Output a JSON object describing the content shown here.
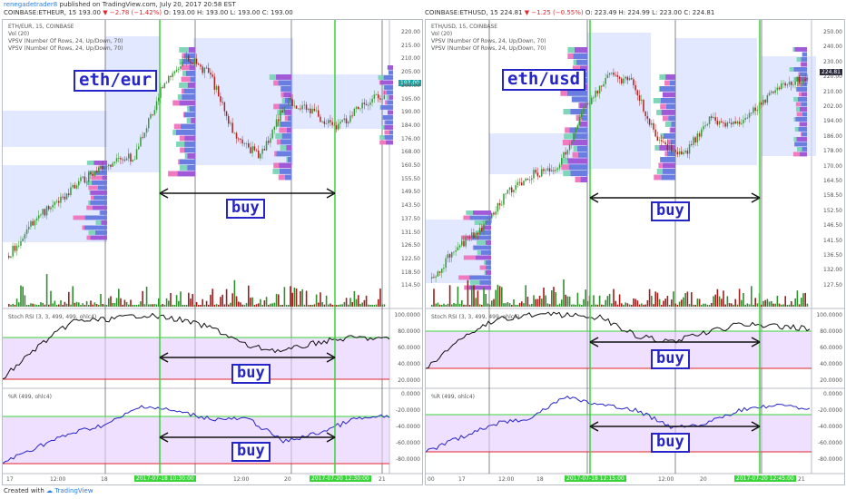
{
  "header": {
    "author": "renegadetrader8",
    "published": "published on TradingView.com, July 20, 2017 20:58 EST",
    "left_symbol": "COINBASE:ETHEUR, 15",
    "left_price": "193.00",
    "left_change": "▼ −2.78 (−1.42%)",
    "left_ohlc": "O: 193.00 H: 193.00 L: 193.00 C: 193.00",
    "right_symbol": "COINBASE:ETHUSD, 15",
    "right_price": "224.81",
    "right_change": "▼ −1.25 (−0.55%)",
    "right_ohlc": "O: 223.49 H: 224.99 L: 223.00 C: 224.81"
  },
  "charts": [
    {
      "id": "left",
      "legend": [
        "ETH/EUR, 15, COINBASE",
        "Vol (20)",
        "VPSV (Number Of Rows, 24, Up/Down, 70)",
        "VPSV (Number Of Rows, 24, Up/Down, 70)"
      ],
      "big_label": "eth/eur",
      "buy_label": "buy",
      "price_axis": [
        "220.00",
        "215.00",
        "210.00",
        "205.00",
        "200.00",
        "195.00",
        "190.00",
        "184.00",
        "176.00",
        "168.00",
        "160.50",
        "155.50",
        "149.50",
        "143.50",
        "137.50",
        "131.50",
        "126.50",
        "122.50",
        "118.50",
        "114.50"
      ],
      "price_tag": "193.00",
      "stoch_title": "Stoch RSI (3, 3, 499, 499, ohlc4)",
      "stoch_axis": [
        "100.0000",
        "80.0000",
        "60.0000",
        "40.0000",
        "20.0000"
      ],
      "wr_title": "%R (499, ohlc4)",
      "wr_axis": [
        "0.0000",
        "-20.0000",
        "-40.0000",
        "-60.0000",
        "-80.0000"
      ],
      "time_axis": [
        "17",
        "12:00",
        "18",
        "12:00",
        "19",
        "12:00",
        "20",
        "12:00",
        "21"
      ],
      "time_hl": [
        "2017-07-18 10:30:00",
        "2017-07-20 12:30:00"
      ]
    },
    {
      "id": "right",
      "legend": [
        "ETH/USD, 15, COINBASE",
        "Vol (20)",
        "VPSV (Number Of Rows, 24, Up/Down, 70)",
        "VPSV (Number Of Rows, 24, Up/Down, 70)"
      ],
      "big_label": "eth/usd",
      "buy_label": "buy",
      "price_axis": [
        "250.00",
        "240.00",
        "230.00",
        "220.00",
        "210.00",
        "202.00",
        "194.00",
        "186.00",
        "178.00",
        "170.00",
        "164.50",
        "158.50",
        "152.50",
        "146.50",
        "141.50",
        "136.50",
        "132.00",
        "127.50"
      ],
      "price_tag": "224.81",
      "stoch_title": "Stoch RSI (3, 3, 499, 499, ohlc4)",
      "stoch_axis": [
        "100.0000",
        "80.0000",
        "60.0000",
        "40.0000",
        "20.0000"
      ],
      "wr_title": "%R (499, ohlc4)",
      "wr_axis": [
        "0.0000",
        "-20.0000",
        "-40.0000",
        "-60.0000",
        "-80.0000"
      ],
      "time_axis": [
        "00",
        "17",
        "12:00",
        "18",
        "12:00",
        "19",
        "12:00",
        "20",
        "12:00",
        "21"
      ],
      "time_hl": [
        "2017-07-18 12:15:00",
        "2017-07-20 12:45:00"
      ]
    }
  ],
  "footer": {
    "created": "Created with",
    "brand": "TradingView"
  },
  "colors": {
    "accent": "#2626c8",
    "green_line": "#3ad43a",
    "red_line": "#e0262c",
    "purple_fill": "#e6ccff",
    "vpsv_blue": "#c9d6ff"
  }
}
